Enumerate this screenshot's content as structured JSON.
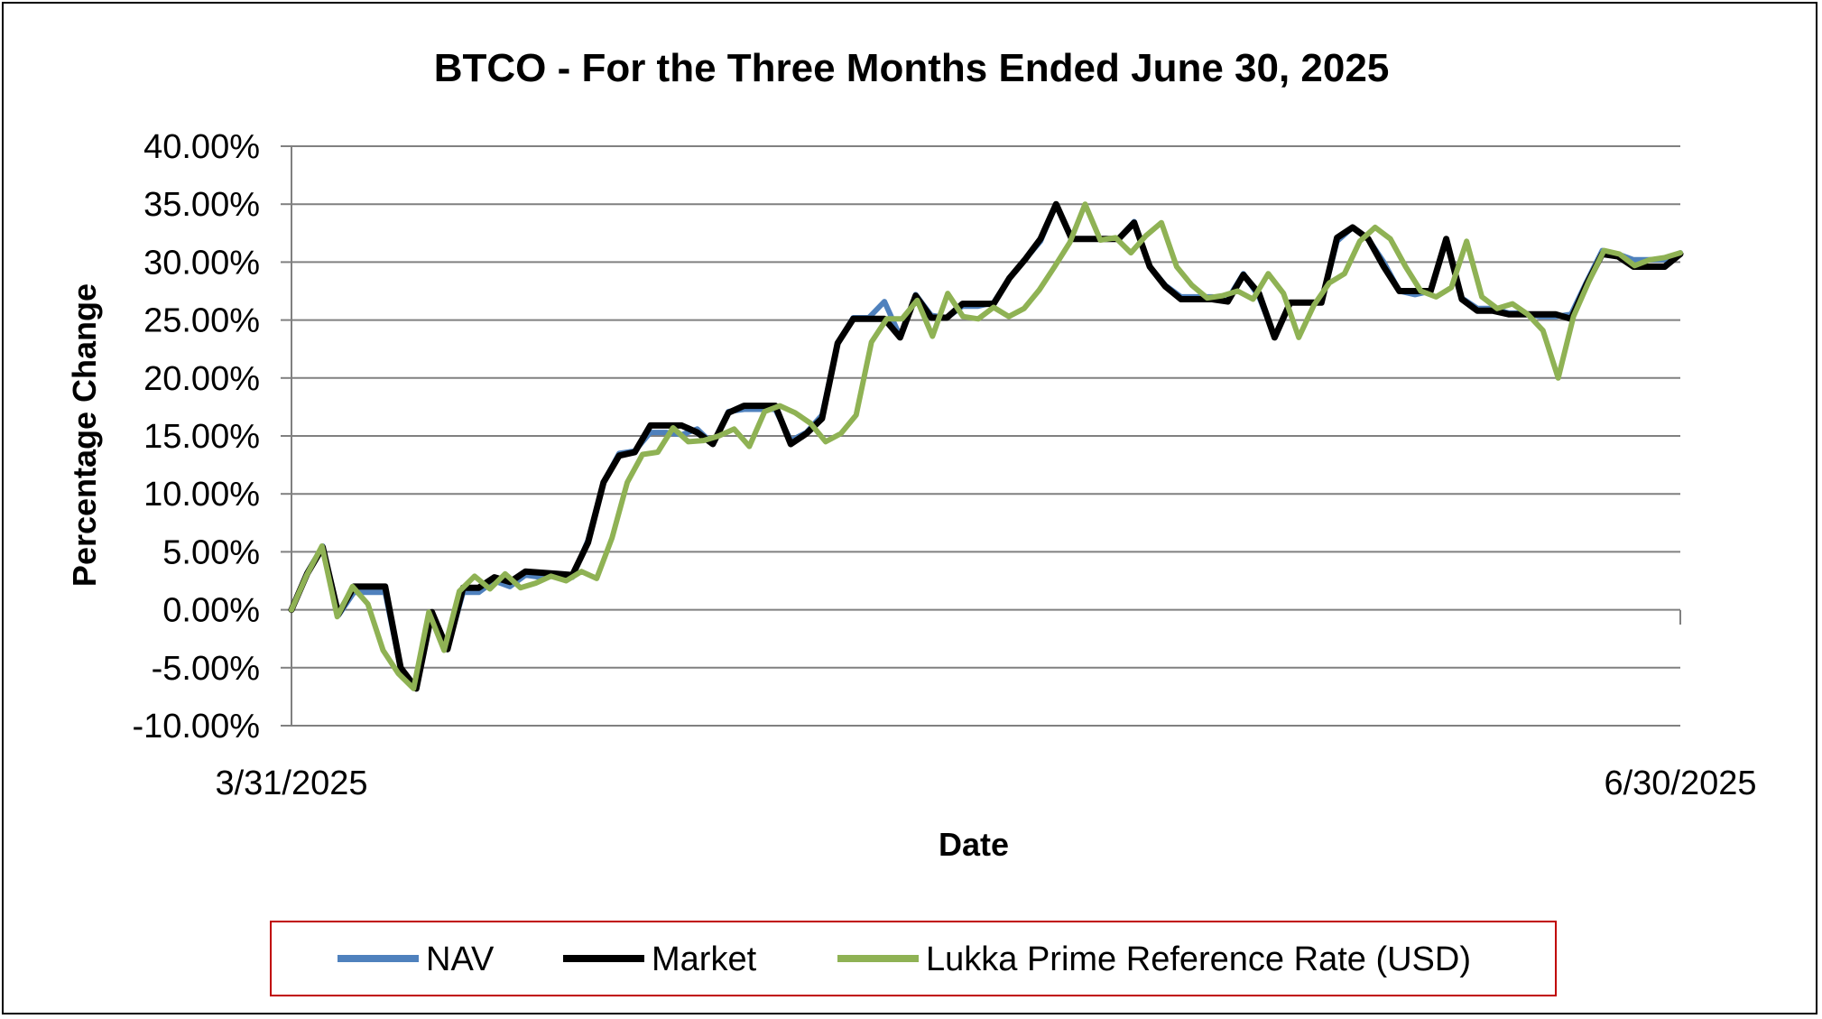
{
  "chart_data": {
    "type": "line",
    "title": "BTCO - For the Three Months Ended June 30, 2025",
    "xlabel": "Date",
    "ylabel": "Percentage Change",
    "x_tick_labels": [
      "3/31/2025",
      "6/30/2025"
    ],
    "y_tick_labels": [
      "40.00%",
      "35.00%",
      "30.00%",
      "25.00%",
      "20.00%",
      "15.00%",
      "10.00%",
      "5.00%",
      "0.00%",
      "-5.00%",
      "-10.00%"
    ],
    "ylim": [
      -10,
      40
    ],
    "y_unit": "%",
    "grid": true,
    "legend_position": "bottom",
    "series": [
      {
        "name": "NAV",
        "color": "#4f81bd",
        "values": [
          0,
          3.2,
          5.5,
          -0.5,
          1.5,
          1.5,
          1.5,
          -5.1,
          -6.8,
          -0.2,
          -3.3,
          1.5,
          1.5,
          2.5,
          2,
          3,
          2.8,
          3,
          2.8,
          6,
          11,
          13.5,
          13.7,
          15.3,
          15.3,
          15.1,
          15.6,
          14.3,
          17.1,
          17.3,
          17.3,
          17.3,
          14.6,
          15.3,
          16.8,
          23,
          25.2,
          25.2,
          26.6,
          23.6,
          27.2,
          25.4,
          25.2,
          26.2,
          26.2,
          26.5,
          28.6,
          30.2,
          31.8,
          35,
          32,
          32,
          32,
          32,
          33.5,
          29.6,
          28,
          27,
          27,
          27,
          26.8,
          29,
          27,
          23.6,
          26.5,
          26.5,
          26.5,
          31.8,
          33,
          32,
          30,
          27.5,
          27.2,
          27.5,
          32,
          26.9,
          26,
          26,
          25.6,
          25.6,
          25.3,
          25.3,
          25.5,
          28.3,
          31,
          30.7,
          30.2,
          30.2,
          30.2,
          30.8
        ]
      },
      {
        "name": "Market",
        "color": "#000000",
        "values": [
          0,
          3.1,
          5.4,
          -0.4,
          2,
          2,
          2,
          -5,
          -6.8,
          -0.2,
          -3.4,
          1.9,
          1.9,
          2.8,
          2.4,
          3.3,
          3.2,
          3.1,
          3,
          5.8,
          11,
          13.3,
          13.6,
          15.9,
          15.9,
          15.9,
          15.3,
          14.3,
          17,
          17.6,
          17.6,
          17.6,
          14.3,
          15.2,
          16.5,
          23,
          25.1,
          25.1,
          25.1,
          23.5,
          27.1,
          25.2,
          25.2,
          26.4,
          26.4,
          26.4,
          28.6,
          30.2,
          32,
          35,
          32,
          32,
          32,
          32,
          33.4,
          29.6,
          27.9,
          26.8,
          26.8,
          26.8,
          26.6,
          28.9,
          27.3,
          23.5,
          26.5,
          26.5,
          26.5,
          32.1,
          33,
          32,
          29.6,
          27.5,
          27.5,
          27.5,
          32,
          26.8,
          25.8,
          25.8,
          25.5,
          25.5,
          25.5,
          25.5,
          25.1,
          28.1,
          30.7,
          30.5,
          29.6,
          29.6,
          29.6,
          30.7
        ]
      },
      {
        "name": "Lukka Prime Reference Rate (USD)",
        "color": "#8fb254",
        "values": [
          0,
          3,
          5.5,
          -0.6,
          2,
          0.5,
          -3.5,
          -5.5,
          -6.8,
          -0.2,
          -3.5,
          1.6,
          2.9,
          1.8,
          3.1,
          1.9,
          2.3,
          2.9,
          2.5,
          3.3,
          2.7,
          6.2,
          11,
          13.4,
          13.6,
          15.7,
          14.5,
          14.6,
          15,
          15.6,
          14.1,
          17.1,
          17.6,
          17,
          16.1,
          14.5,
          15.2,
          16.8,
          23.1,
          25.1,
          25.1,
          26.7,
          23.6,
          27.3,
          25.3,
          25.1,
          26.1,
          25.3,
          26,
          27.6,
          29.6,
          31.7,
          35,
          31.9,
          32.1,
          30.8,
          32.3,
          33.4,
          29.6,
          28,
          26.9,
          27.1,
          27.5,
          26.8,
          29,
          27.3,
          23.5,
          26.3,
          28.2,
          29,
          31.8,
          33,
          32,
          29.6,
          27.5,
          27,
          27.8,
          31.8,
          27,
          26,
          26.4,
          25.5,
          24.1,
          20,
          25.3,
          28.3,
          31,
          30.7,
          29.7,
          30.2,
          30.4,
          30.8
        ]
      }
    ]
  }
}
